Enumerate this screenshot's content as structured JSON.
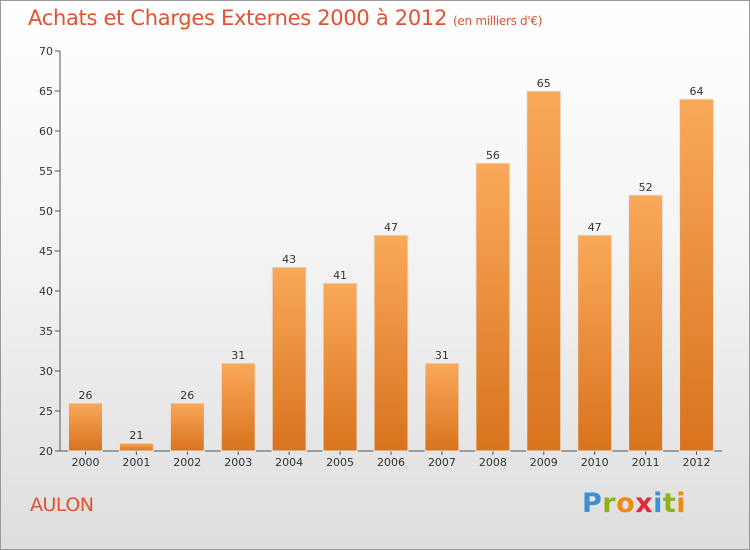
{
  "chart_data": {
    "type": "bar",
    "title": "Achats et Charges Externes 2000 à 2012",
    "subtitle": "(en milliers d'€)",
    "categories": [
      "2000",
      "2001",
      "2002",
      "2003",
      "2004",
      "2005",
      "2006",
      "2007",
      "2008",
      "2009",
      "2010",
      "2011",
      "2012"
    ],
    "values": [
      26,
      21,
      26,
      31,
      43,
      41,
      47,
      31,
      56,
      65,
      47,
      52,
      64
    ],
    "ylim": [
      20,
      70
    ],
    "yticks": [
      20,
      25,
      30,
      35,
      40,
      45,
      50,
      55,
      60,
      65,
      70
    ],
    "xlabel": "",
    "ylabel": "",
    "grid": false,
    "bar_color_top": "#f9a95a",
    "bar_color_bottom": "#d9731e"
  },
  "footer": {
    "town": "AULON",
    "logo": [
      "P",
      "r",
      "o",
      "x",
      "i",
      "t",
      "i"
    ]
  },
  "colors": {
    "title": "#e2522f",
    "axis": "#555555"
  }
}
